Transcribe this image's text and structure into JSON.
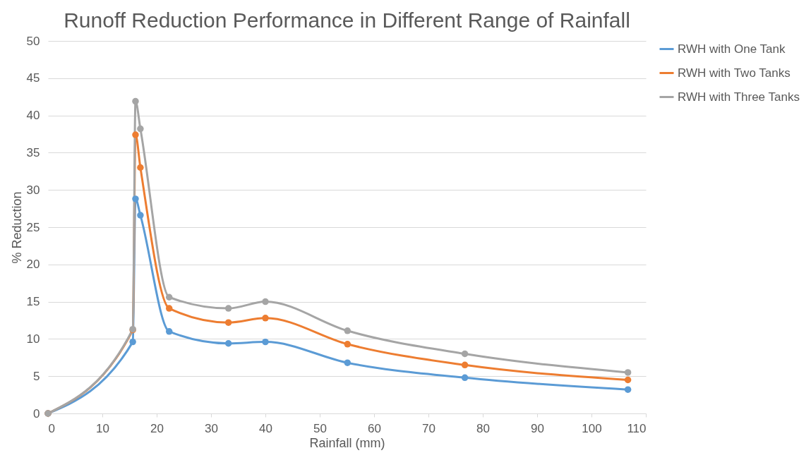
{
  "chart_data": {
    "type": "line",
    "title": "Runoff Reduction Performance in Different Range of Rainfall",
    "xlabel": "Rainfall (mm)",
    "ylabel": "% Reduction",
    "x": [
      0,
      15.6,
      16.1,
      17,
      22.3,
      33.2,
      40,
      55.1,
      76.7,
      106.7
    ],
    "series": [
      {
        "name": "RWH with One Tank",
        "color": "#5b9bd5",
        "values": [
          0,
          9.6,
          28.8,
          26.6,
          11,
          9.4,
          9.6,
          6.8,
          4.8,
          3.2
        ]
      },
      {
        "name": "RWH with Two Tanks",
        "color": "#ed7d31",
        "values": [
          0,
          11.2,
          37.4,
          33,
          14.1,
          12.2,
          12.8,
          9.3,
          6.5,
          4.5
        ]
      },
      {
        "name": "RWH with Three Tanks",
        "color": "#a5a5a5",
        "values": [
          0,
          11.3,
          41.9,
          38.2,
          15.6,
          14.1,
          15,
          11.1,
          8,
          5.5
        ]
      }
    ],
    "xlim": [
      0,
      110
    ],
    "xticks": [
      0,
      10,
      20,
      30,
      40,
      50,
      60,
      70,
      80,
      90,
      100,
      110
    ],
    "ylim": [
      0,
      50
    ],
    "yticks": [
      0,
      5,
      10,
      15,
      20,
      25,
      30,
      35,
      40,
      45,
      50
    ],
    "grid": "y",
    "legend": "right",
    "marker": "circle",
    "line_style": "solid"
  }
}
